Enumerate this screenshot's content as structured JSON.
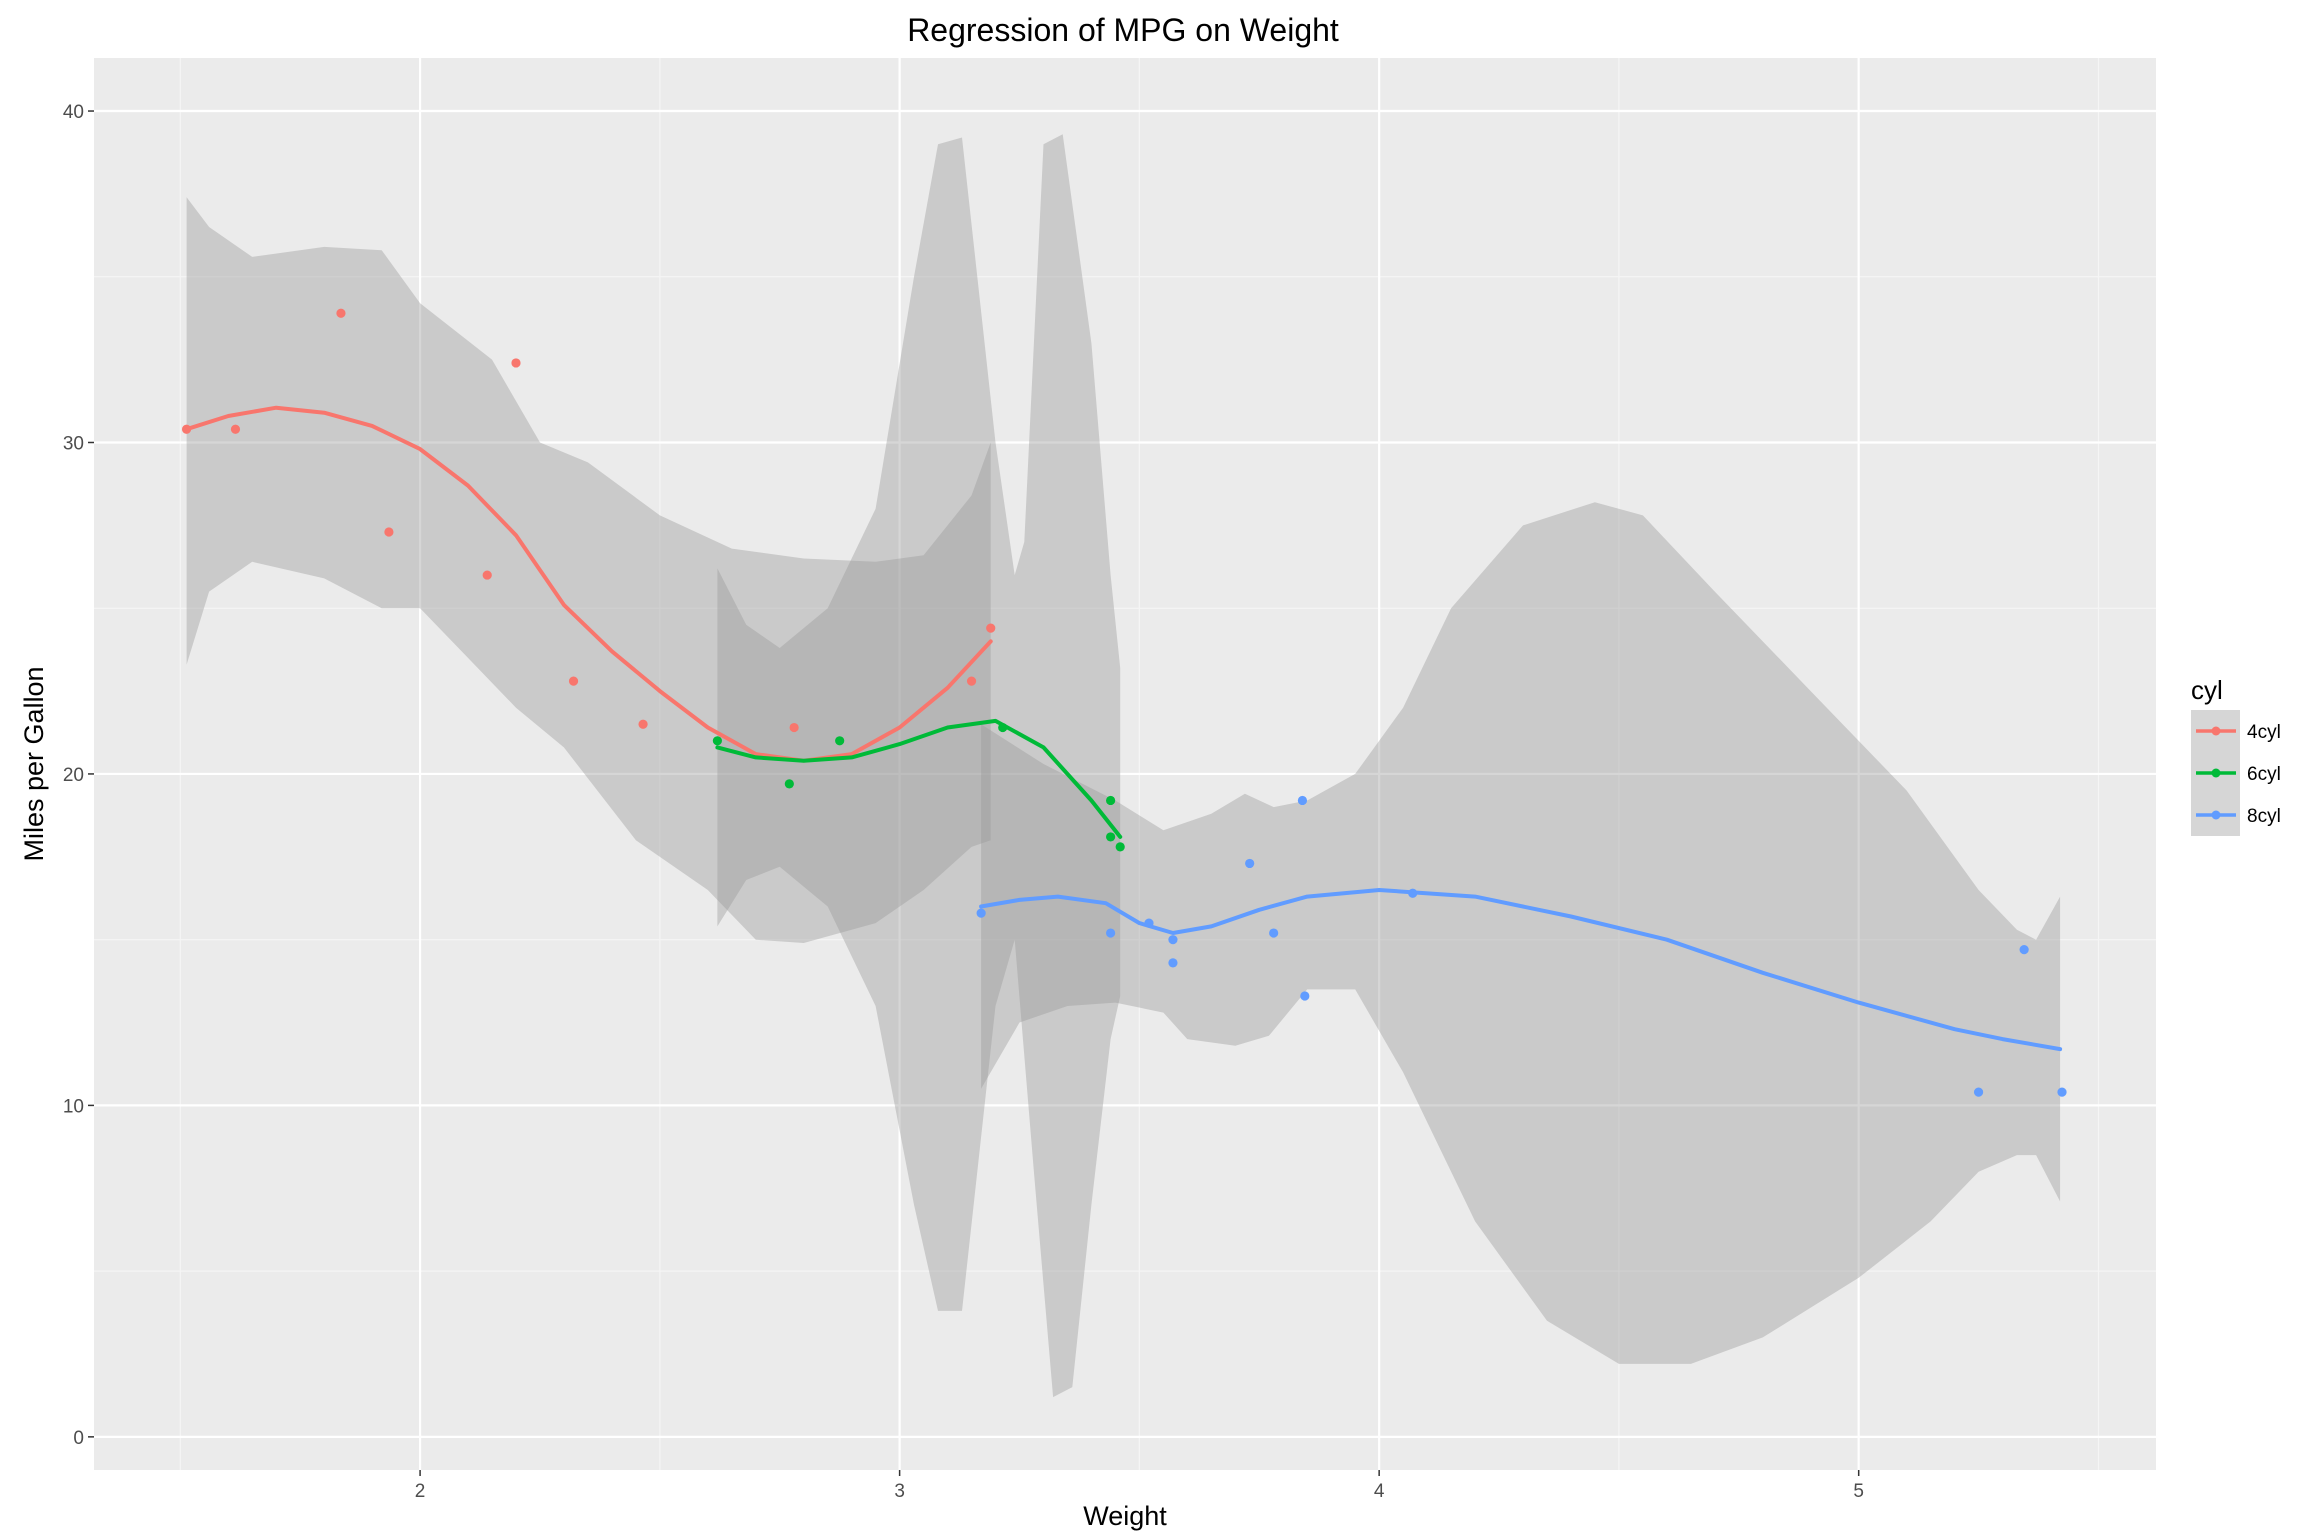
{
  "chart_data": {
    "type": "scatter",
    "title": "Regression of MPG on Weight",
    "xlabel": "Weight",
    "ylabel": "Miles per Gallon",
    "xlim": [
      1.32,
      5.62
    ],
    "ylim": [
      -1.0,
      41.6
    ],
    "x_ticks": [
      2,
      3,
      4,
      5
    ],
    "y_ticks": [
      0,
      10,
      20,
      30,
      40
    ],
    "grid": true,
    "legend": {
      "title": "cyl",
      "placement": "right"
    },
    "series": [
      {
        "name": "4cyl",
        "color": "#F8766D",
        "points": [
          [
            1.513,
            30.4
          ],
          [
            1.615,
            30.4
          ],
          [
            1.835,
            33.9
          ],
          [
            1.935,
            27.3
          ],
          [
            2.14,
            26.0
          ],
          [
            2.2,
            32.4
          ],
          [
            2.32,
            22.8
          ],
          [
            2.465,
            21.5
          ],
          [
            2.78,
            21.4
          ],
          [
            3.15,
            22.8
          ],
          [
            3.19,
            24.4
          ]
        ],
        "fit": [
          [
            1.513,
            30.4
          ],
          [
            1.6,
            30.8
          ],
          [
            1.7,
            31.05
          ],
          [
            1.8,
            30.9
          ],
          [
            1.9,
            30.5
          ],
          [
            2.0,
            29.8
          ],
          [
            2.1,
            28.7
          ],
          [
            2.2,
            27.2
          ],
          [
            2.3,
            25.1
          ],
          [
            2.4,
            23.7
          ],
          [
            2.5,
            22.5
          ],
          [
            2.6,
            21.4
          ],
          [
            2.7,
            20.6
          ],
          [
            2.8,
            20.4
          ],
          [
            2.9,
            20.6
          ],
          [
            3.0,
            21.4
          ],
          [
            3.1,
            22.6
          ],
          [
            3.19,
            24.0
          ]
        ],
        "band_upper": [
          [
            1.513,
            37.4
          ],
          [
            1.56,
            36.5
          ],
          [
            1.65,
            35.6
          ],
          [
            1.8,
            35.9
          ],
          [
            1.92,
            35.8
          ],
          [
            2.0,
            34.2
          ],
          [
            2.15,
            32.5
          ],
          [
            2.25,
            30.0
          ],
          [
            2.35,
            29.4
          ],
          [
            2.5,
            27.8
          ],
          [
            2.65,
            26.8
          ],
          [
            2.8,
            26.5
          ],
          [
            2.95,
            26.4
          ],
          [
            3.05,
            26.6
          ],
          [
            3.15,
            28.4
          ],
          [
            3.19,
            30.0
          ]
        ],
        "band_lower": [
          [
            1.513,
            23.3
          ],
          [
            1.56,
            25.5
          ],
          [
            1.65,
            26.4
          ],
          [
            1.8,
            25.9
          ],
          [
            1.92,
            25.0
          ],
          [
            2.0,
            25.0
          ],
          [
            2.1,
            23.5
          ],
          [
            2.2,
            22.0
          ],
          [
            2.3,
            20.8
          ],
          [
            2.45,
            18.0
          ],
          [
            2.6,
            16.5
          ],
          [
            2.7,
            15.0
          ],
          [
            2.8,
            14.9
          ],
          [
            2.95,
            15.5
          ],
          [
            3.05,
            16.5
          ],
          [
            3.15,
            17.8
          ],
          [
            3.19,
            18.0
          ]
        ]
      },
      {
        "name": "6cyl",
        "color": "#00BA38",
        "points": [
          [
            2.62,
            21.0
          ],
          [
            2.77,
            19.7
          ],
          [
            2.875,
            21.0
          ],
          [
            3.215,
            21.4
          ],
          [
            3.44,
            18.1
          ],
          [
            3.44,
            19.2
          ],
          [
            3.46,
            17.8
          ]
        ],
        "fit": [
          [
            2.62,
            20.8
          ],
          [
            2.7,
            20.5
          ],
          [
            2.8,
            20.4
          ],
          [
            2.9,
            20.5
          ],
          [
            3.0,
            20.9
          ],
          [
            3.1,
            21.4
          ],
          [
            3.2,
            21.6
          ],
          [
            3.3,
            20.8
          ],
          [
            3.4,
            19.2
          ],
          [
            3.46,
            18.1
          ]
        ],
        "band_upper": [
          [
            2.62,
            26.2
          ],
          [
            2.68,
            24.5
          ],
          [
            2.75,
            23.8
          ],
          [
            2.85,
            25.0
          ],
          [
            2.95,
            28.0
          ],
          [
            3.03,
            35.0
          ],
          [
            3.08,
            39.0
          ],
          [
            3.13,
            39.2
          ],
          [
            3.2,
            30.0
          ],
          [
            3.24,
            26.0
          ],
          [
            3.26,
            27.0
          ],
          [
            3.3,
            39.0
          ],
          [
            3.34,
            39.3
          ],
          [
            3.4,
            33.0
          ],
          [
            3.44,
            26.0
          ],
          [
            3.46,
            23.2
          ]
        ],
        "band_lower": [
          [
            2.62,
            15.4
          ],
          [
            2.68,
            16.8
          ],
          [
            2.75,
            17.2
          ],
          [
            2.85,
            16.0
          ],
          [
            2.95,
            13.0
          ],
          [
            3.03,
            7.0
          ],
          [
            3.08,
            3.8
          ],
          [
            3.13,
            3.8
          ],
          [
            3.2,
            13.0
          ],
          [
            3.24,
            15.0
          ],
          [
            3.28,
            8.0
          ],
          [
            3.32,
            1.2
          ],
          [
            3.36,
            1.5
          ],
          [
            3.4,
            7.0
          ],
          [
            3.44,
            12.0
          ],
          [
            3.46,
            13.3
          ]
        ]
      },
      {
        "name": "8cyl",
        "color": "#619CFF",
        "points": [
          [
            3.17,
            15.8
          ],
          [
            3.44,
            15.2
          ],
          [
            3.52,
            15.5
          ],
          [
            3.57,
            15.0
          ],
          [
            3.57,
            14.3
          ],
          [
            3.73,
            17.3
          ],
          [
            3.78,
            15.2
          ],
          [
            3.84,
            19.2
          ],
          [
            3.845,
            13.3
          ],
          [
            4.07,
            16.4
          ],
          [
            5.25,
            10.4
          ],
          [
            5.345,
            14.7
          ],
          [
            5.424,
            10.4
          ]
        ],
        "fit": [
          [
            3.17,
            16.0
          ],
          [
            3.25,
            16.2
          ],
          [
            3.33,
            16.3
          ],
          [
            3.43,
            16.1
          ],
          [
            3.5,
            15.5
          ],
          [
            3.57,
            15.2
          ],
          [
            3.65,
            15.4
          ],
          [
            3.75,
            15.9
          ],
          [
            3.85,
            16.3
          ],
          [
            4.0,
            16.5
          ],
          [
            4.2,
            16.3
          ],
          [
            4.4,
            15.7
          ],
          [
            4.6,
            15.0
          ],
          [
            4.8,
            14.0
          ],
          [
            5.0,
            13.1
          ],
          [
            5.2,
            12.3
          ],
          [
            5.3,
            12.0
          ],
          [
            5.42,
            11.7
          ]
        ],
        "band_upper": [
          [
            3.17,
            21.5
          ],
          [
            3.3,
            20.3
          ],
          [
            3.45,
            19.2
          ],
          [
            3.55,
            18.3
          ],
          [
            3.65,
            18.8
          ],
          [
            3.72,
            19.4
          ],
          [
            3.78,
            19.0
          ],
          [
            3.85,
            19.2
          ],
          [
            3.95,
            20.0
          ],
          [
            4.05,
            22.0
          ],
          [
            4.15,
            25.0
          ],
          [
            4.3,
            27.5
          ],
          [
            4.45,
            28.2
          ],
          [
            4.55,
            27.8
          ],
          [
            4.7,
            25.5
          ],
          [
            4.9,
            22.5
          ],
          [
            5.1,
            19.5
          ],
          [
            5.25,
            16.5
          ],
          [
            5.33,
            15.3
          ],
          [
            5.37,
            15.0
          ],
          [
            5.42,
            16.3
          ]
        ],
        "band_lower": [
          [
            3.17,
            10.5
          ],
          [
            3.25,
            12.5
          ],
          [
            3.35,
            13.0
          ],
          [
            3.45,
            13.1
          ],
          [
            3.55,
            12.8
          ],
          [
            3.6,
            12.0
          ],
          [
            3.7,
            11.8
          ],
          [
            3.77,
            12.1
          ],
          [
            3.85,
            13.5
          ],
          [
            3.95,
            13.5
          ],
          [
            4.05,
            11.0
          ],
          [
            4.2,
            6.5
          ],
          [
            4.35,
            3.5
          ],
          [
            4.5,
            2.2
          ],
          [
            4.65,
            2.2
          ],
          [
            4.8,
            3.0
          ],
          [
            5.0,
            4.8
          ],
          [
            5.15,
            6.5
          ],
          [
            5.25,
            8.0
          ],
          [
            5.33,
            8.5
          ],
          [
            5.37,
            8.5
          ],
          [
            5.42,
            7.1
          ]
        ]
      }
    ]
  }
}
